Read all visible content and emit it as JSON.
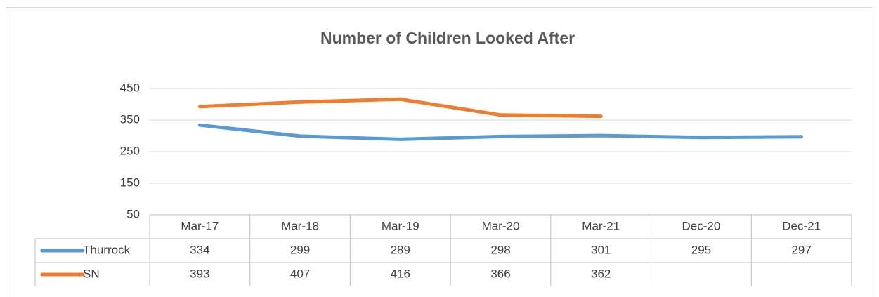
{
  "chart_data": {
    "type": "line",
    "title": "Number of Children Looked After",
    "categories": [
      "Mar-17",
      "Mar-18",
      "Mar-19",
      "Mar-20",
      "Mar-21",
      "Dec-20",
      "Dec-21"
    ],
    "series": [
      {
        "name": "Thurrock",
        "color": "#5b9bd5",
        "values": [
          334,
          299,
          289,
          298,
          301,
          295,
          297
        ]
      },
      {
        "name": "SN",
        "color": "#ed7d31",
        "values": [
          393,
          407,
          416,
          366,
          362,
          null,
          null
        ]
      }
    ],
    "ylim": [
      50,
      450
    ],
    "yticks": [
      50,
      150,
      250,
      350,
      450
    ],
    "grid": true
  }
}
